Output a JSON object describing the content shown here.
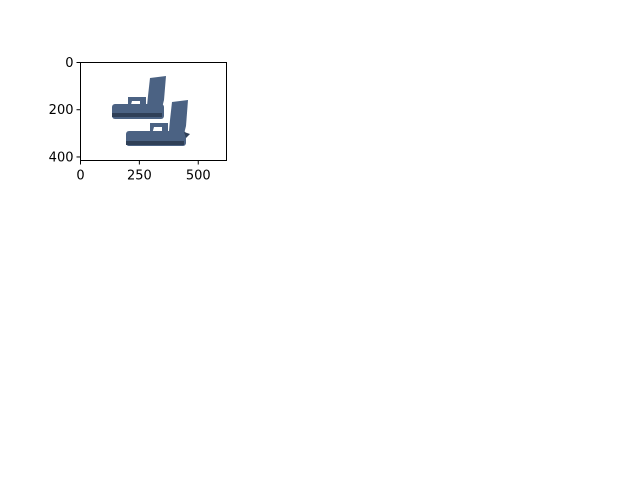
{
  "chart_data": {
    "type": "image",
    "title": "",
    "xlabel": "",
    "ylabel": "",
    "xlim": [
      0,
      620
    ],
    "ylim": [
      415,
      0
    ],
    "x_ticks": [
      0,
      250,
      500
    ],
    "y_ticks": [
      0,
      200,
      400
    ],
    "x_tick_labels": [
      "0",
      "250",
      "500"
    ],
    "y_tick_labels": [
      "0",
      "200",
      "400"
    ],
    "grid": false,
    "image_content": "pistol-pair",
    "colors": {
      "gun_body": "#4b6283",
      "gun_dark": "#2f3f57",
      "background": "#ffffff",
      "axis": "#000000"
    }
  }
}
